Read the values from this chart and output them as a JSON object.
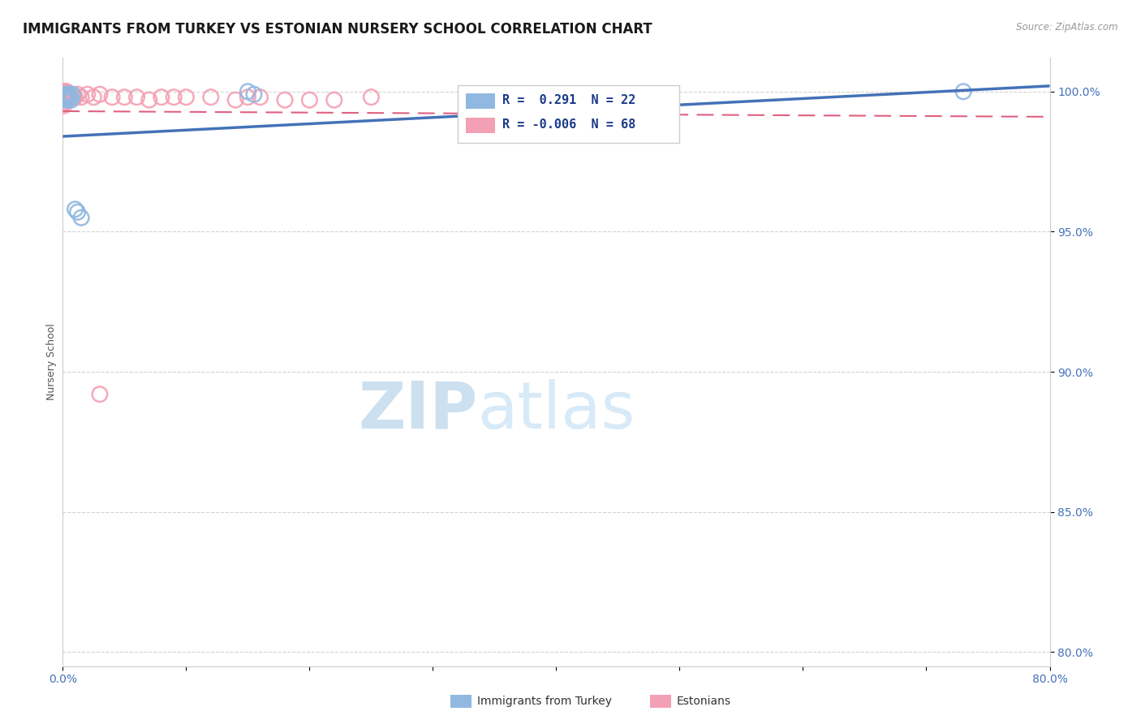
{
  "title": "IMMIGRANTS FROM TURKEY VS ESTONIAN NURSERY SCHOOL CORRELATION CHART",
  "source": "Source: ZipAtlas.com",
  "ylabel": "Nursery School",
  "x_min": 0.0,
  "x_max": 0.8,
  "y_min": 0.795,
  "y_max": 1.012,
  "x_ticks": [
    0.0,
    0.1,
    0.2,
    0.3,
    0.4,
    0.5,
    0.6,
    0.7,
    0.8
  ],
  "x_tick_labels": [
    "0.0%",
    "",
    "",
    "",
    "",
    "",
    "",
    "",
    "80.0%"
  ],
  "y_ticks": [
    0.8,
    0.85,
    0.9,
    0.95,
    1.0
  ],
  "y_tick_labels": [
    "80.0%",
    "85.0%",
    "90.0%",
    "95.0%",
    "100.0%"
  ],
  "blue_color": "#90b8e0",
  "pink_color": "#f4a0b4",
  "blue_line_color": "#4472b8",
  "pink_line_color": "#e06080",
  "grid_color": "#c8c8c8",
  "background_color": "#ffffff",
  "legend_R_blue": "0.291",
  "legend_N_blue": "22",
  "legend_R_pink": "-0.006",
  "legend_N_pink": "68",
  "blue_trend_x": [
    0.0,
    0.8
  ],
  "blue_trend_y": [
    0.984,
    1.002
  ],
  "pink_trend_x": [
    0.0,
    0.8
  ],
  "pink_trend_y": [
    0.993,
    0.991
  ],
  "blue_scatter_x": [
    0.001,
    0.001,
    0.001,
    0.002,
    0.002,
    0.003,
    0.003,
    0.004,
    0.005,
    0.006,
    0.007,
    0.008,
    0.01,
    0.012,
    0.015,
    0.15,
    0.155,
    0.73
  ],
  "blue_scatter_y": [
    0.999,
    0.998,
    0.997,
    0.999,
    0.998,
    0.999,
    0.998,
    0.997,
    0.999,
    0.998,
    0.997,
    0.999,
    0.958,
    0.957,
    0.955,
    1.0,
    0.999,
    1.0
  ],
  "pink_scatter_x": [
    0.001,
    0.001,
    0.001,
    0.001,
    0.001,
    0.001,
    0.001,
    0.001,
    0.001,
    0.001,
    0.001,
    0.001,
    0.001,
    0.001,
    0.001,
    0.002,
    0.002,
    0.002,
    0.002,
    0.002,
    0.003,
    0.003,
    0.003,
    0.004,
    0.004,
    0.005,
    0.005,
    0.006,
    0.007,
    0.008,
    0.009,
    0.01,
    0.012,
    0.015,
    0.02,
    0.025,
    0.03,
    0.04,
    0.05,
    0.06,
    0.07,
    0.08,
    0.09,
    0.1,
    0.12,
    0.14,
    0.15,
    0.16,
    0.18,
    0.2,
    0.22,
    0.25,
    0.03
  ],
  "pink_scatter_y": [
    1.0,
    1.0,
    1.0,
    1.0,
    0.999,
    0.999,
    0.999,
    0.998,
    0.998,
    0.998,
    0.997,
    0.997,
    0.996,
    0.996,
    0.995,
    1.0,
    0.999,
    0.998,
    0.998,
    0.997,
    1.0,
    0.999,
    0.998,
    0.999,
    0.998,
    0.999,
    0.998,
    0.999,
    0.999,
    0.998,
    0.998,
    0.998,
    0.999,
    0.998,
    0.999,
    0.998,
    0.999,
    0.998,
    0.998,
    0.998,
    0.997,
    0.998,
    0.998,
    0.998,
    0.998,
    0.997,
    0.998,
    0.998,
    0.997,
    0.997,
    0.997,
    0.998,
    0.892
  ],
  "title_fontsize": 12,
  "tick_fontsize": 10,
  "axis_label_fontsize": 9,
  "legend_fontsize": 11
}
